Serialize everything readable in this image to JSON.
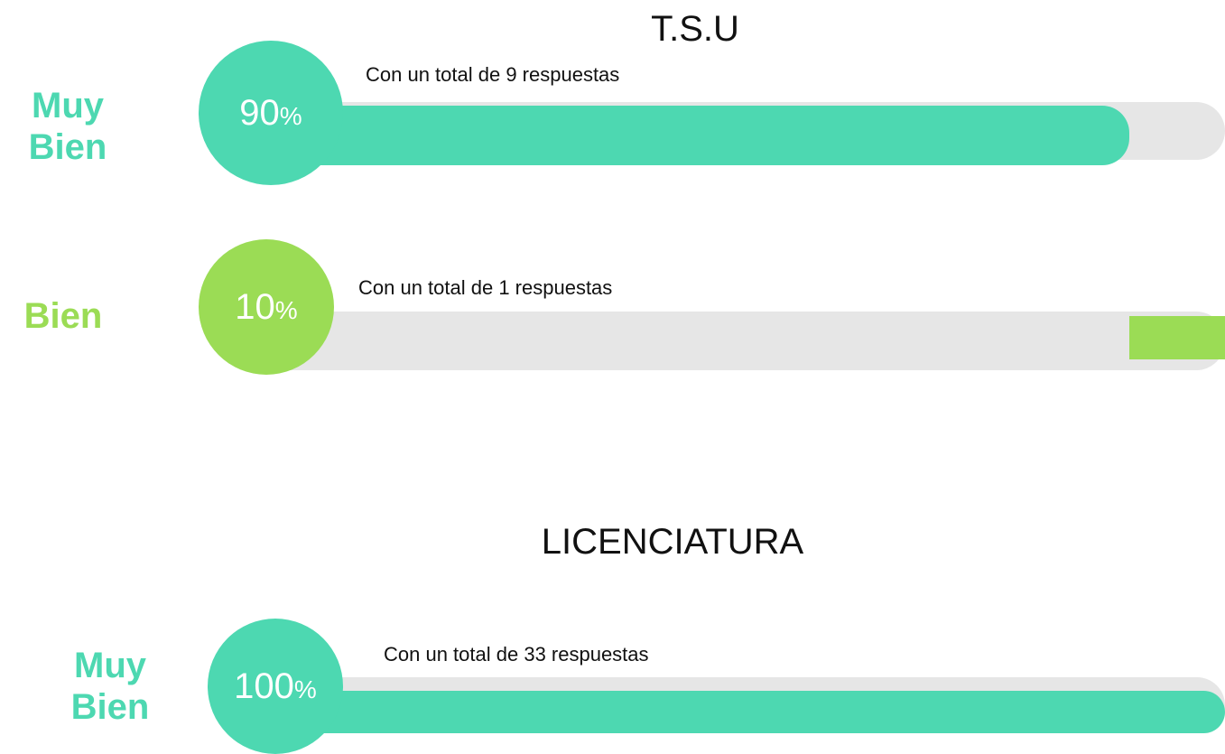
{
  "sections": [
    {
      "title": "T.S.U",
      "rows": [
        {
          "label": "Muy Bien",
          "value": 90,
          "unit": "%",
          "caption": "Con un total de 9 respuestas",
          "color": "#4dd8b1",
          "bar_align": "left"
        },
        {
          "label": "Bien",
          "value": 10,
          "unit": "%",
          "caption": "Con un total de 1 respuestas",
          "color": "#9bdc55",
          "bar_align": "right"
        }
      ]
    },
    {
      "title": "LICENCIATURA",
      "rows": [
        {
          "label": "Muy Bien",
          "value": 100,
          "unit": "%",
          "caption": "Con un total de 33 respuestas",
          "color": "#4dd8b1",
          "bar_align": "left"
        }
      ]
    }
  ]
}
